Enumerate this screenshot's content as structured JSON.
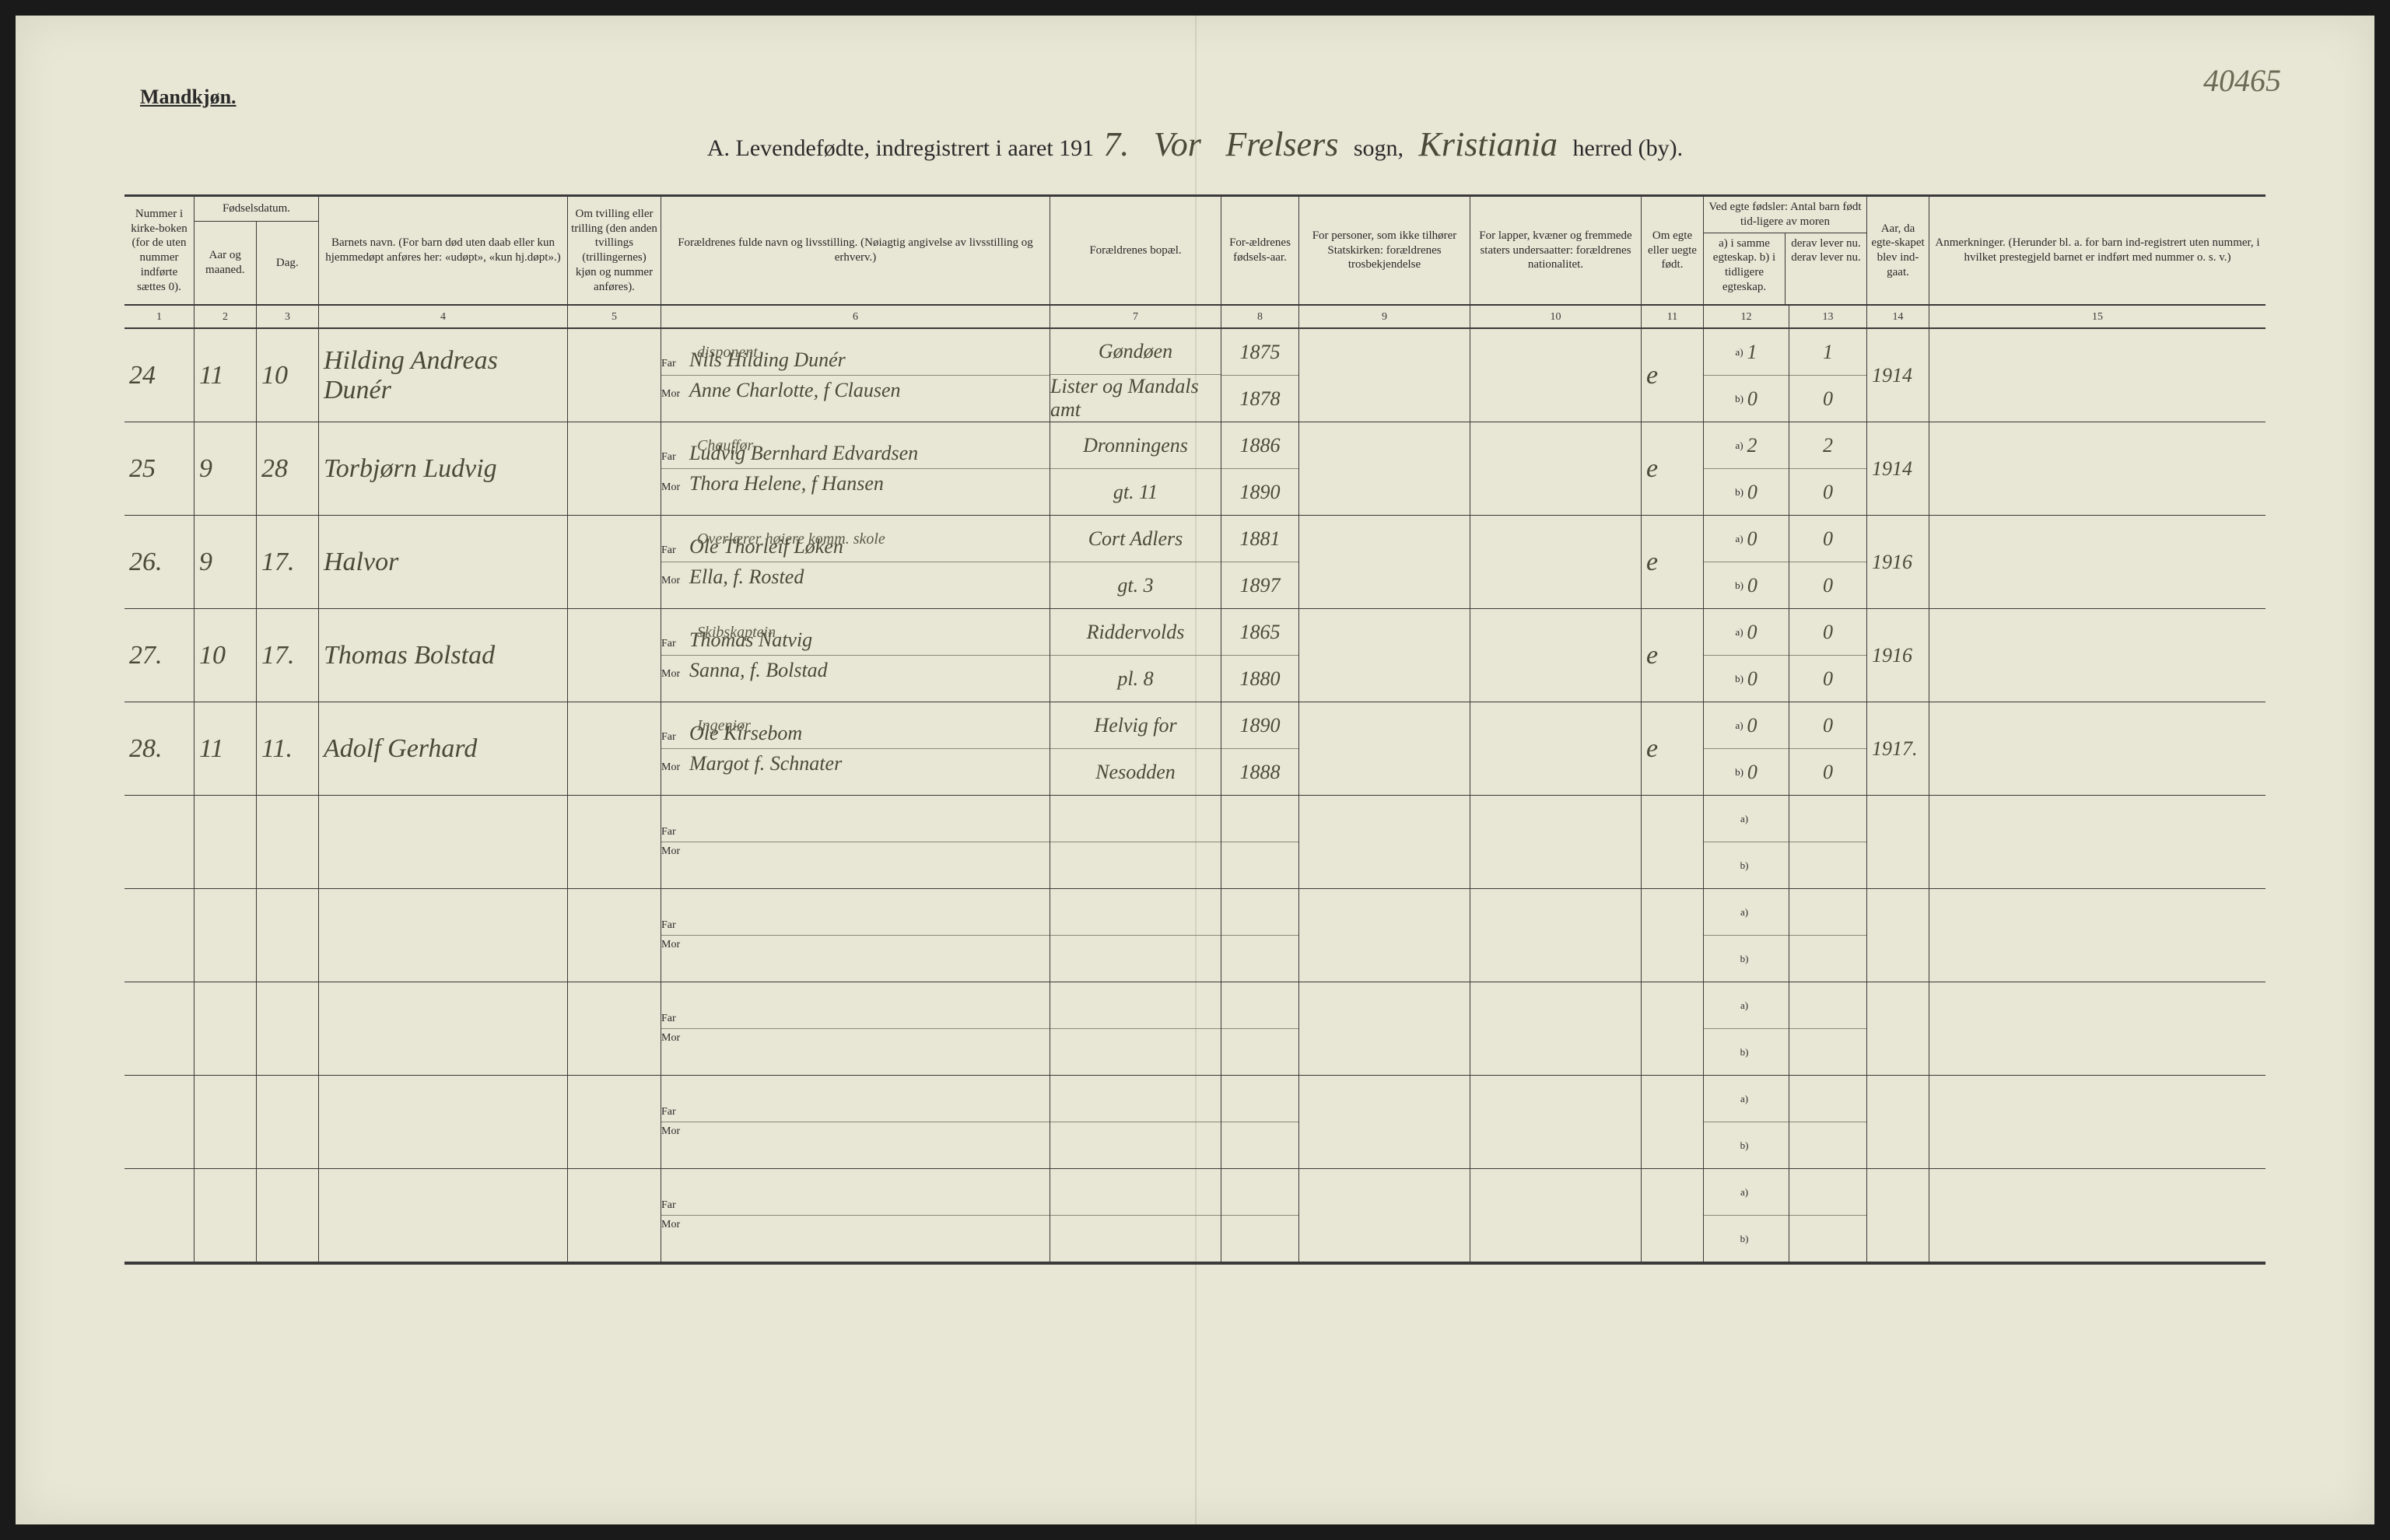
{
  "page": {
    "gender_label": "Mandkjøn.",
    "top_right_note": "40465",
    "title_prefix": "A.  Levendefødte, indregistrert i aaret 191",
    "year_suffix": "7.",
    "sogn_script1": "Vor",
    "sogn_script2": "Frelsers",
    "sogn_label": "sogn,",
    "herred_script": "Kristiania",
    "herred_label": "herred (by)."
  },
  "headers": {
    "c1": "Nummer i kirke-boken (for de uten nummer indførte sættes 0).",
    "c2_top": "Fødselsdatum.",
    "c2": "Aar og maaned.",
    "c3": "Dag.",
    "c4": "Barnets navn.\n(For barn død uten daab eller kun hjemmedøpt anføres her: «udøpt», «kun hj.døpt».)",
    "c5": "Om tvilling eller trilling (den anden tvillings (trillingernes) kjøn og nummer anføres).",
    "c6": "Forældrenes fulde navn og livsstilling.\n(Nøiagtig angivelse av livsstilling og erhverv.)",
    "c7": "Forældrenes bopæl.",
    "c8": "For-ældrenes fødsels-aar.",
    "c9": "For personer, som ikke tilhører Statskirken: forældrenes trosbekjendelse",
    "c10": "For lapper, kvæner og fremmede staters undersaatter: forældrenes nationalitet.",
    "c11": "Om egte eller uegte født.",
    "c12_13_top": "Ved egte fødsler: Antal barn født tid-ligere av moren",
    "c12": "a) i samme egteskap.\nb) i tidligere egteskap.",
    "c13": "derav lever nu.\nderav lever nu.",
    "c14": "Aar, da egte-skapet blev ind-gaat.",
    "c15": "Anmerkninger.\n(Herunder bl. a. for barn ind-registrert uten nummer, i hvilket prestegjeld barnet er indført med nummer o. s. v.)"
  },
  "colnums": [
    "1",
    "2",
    "3",
    "4",
    "5",
    "6",
    "7",
    "8",
    "9",
    "10",
    "11",
    "12",
    "13",
    "14",
    "15"
  ],
  "rows": [
    {
      "num": "24",
      "month": "11",
      "day": "10",
      "child": "Hilding Andreas\nDunér",
      "far_occ": "disponent",
      "far": "Nils Hilding Dunér",
      "mor": "Anne Charlotte, f Clausen",
      "bopel_far": "Gøndøen",
      "bopel_mor": "Lister og Mandals amt",
      "year_far": "1875",
      "year_mor": "1878",
      "egte": "e",
      "c12a": "1",
      "c12b": "0",
      "c13a": "1",
      "c13b": "0",
      "year_marr": "1914"
    },
    {
      "num": "25",
      "month": "9",
      "day": "28",
      "child": "Torbjørn Ludvig",
      "far_occ": "Chauffør",
      "far": "Ludvig Bernhard Edvardsen",
      "mor": "Thora Helene, f Hansen",
      "bopel_far": "Dronningens",
      "bopel_mor": "gt. 11",
      "year_far": "1886",
      "year_mor": "1890",
      "egte": "e",
      "c12a": "2",
      "c12b": "0",
      "c13a": "2",
      "c13b": "0",
      "year_marr": "1914"
    },
    {
      "num": "26.",
      "month": "9",
      "day": "17.",
      "child": "Halvor",
      "far_occ": "Overlærer høiere komm. skole",
      "far": "Ole Thorleif Løken",
      "mor": "Ella, f. Rosted",
      "bopel_far": "Cort Adlers",
      "bopel_mor": "gt. 3",
      "year_far": "1881",
      "year_mor": "1897",
      "egte": "e",
      "c12a": "0",
      "c12b": "0",
      "c13a": "0",
      "c13b": "0",
      "year_marr": "1916"
    },
    {
      "num": "27.",
      "month": "10",
      "day": "17.",
      "child": "Thomas Bolstad",
      "far_occ": "Skibskaptein",
      "far": "Thomas Natvig",
      "mor": "Sanna, f. Bolstad",
      "bopel_far": "Riddervolds",
      "bopel_mor": "pl. 8",
      "year_far": "1865",
      "year_mor": "1880",
      "egte": "e",
      "c12a": "0",
      "c12b": "0",
      "c13a": "0",
      "c13b": "0",
      "year_marr": "1916"
    },
    {
      "num": "28.",
      "month": "11",
      "day": "11.",
      "child": "Adolf Gerhard",
      "far_occ": "Ingeniør",
      "far": "Ole Kirsebom",
      "mor": "Margot f. Schnater",
      "bopel_far": "Helvig for",
      "bopel_mor": "Nesodden",
      "year_far": "1890",
      "year_mor": "1888",
      "egte": "e",
      "c12a": "0",
      "c12b": "0",
      "c13a": "0",
      "c13b": "0",
      "year_marr": "1917."
    }
  ],
  "empty_rows": 5,
  "labels": {
    "far": "Far",
    "mor": "Mor",
    "a": "a)",
    "b": "b)"
  }
}
